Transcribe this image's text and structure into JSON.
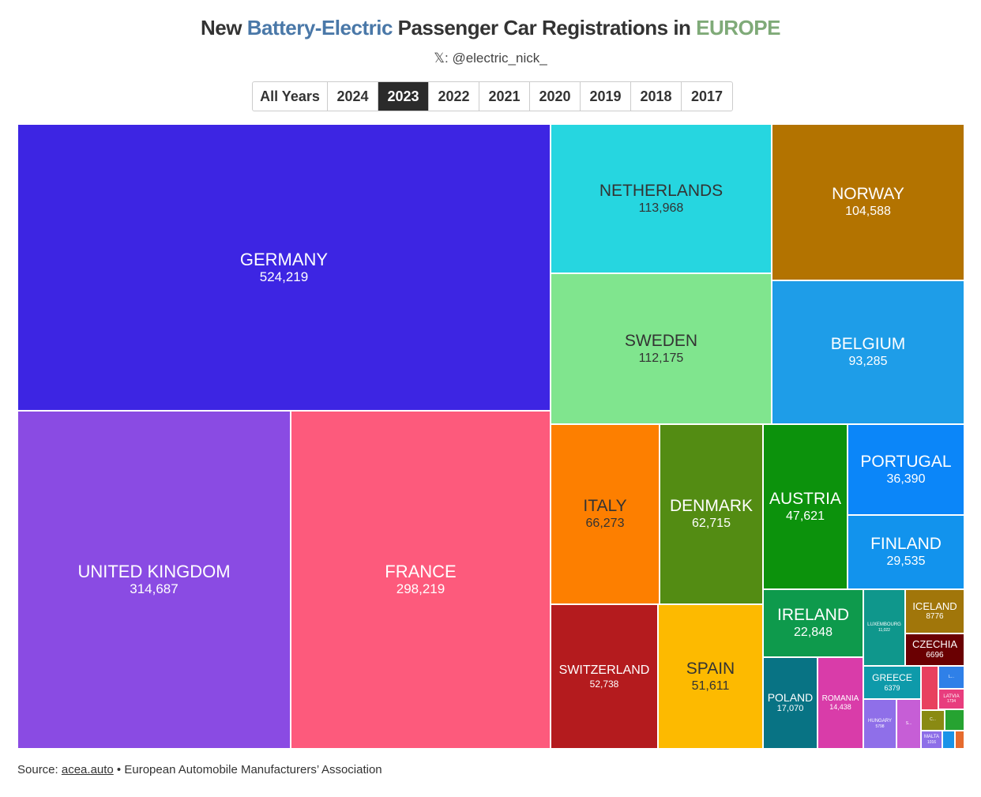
{
  "title": {
    "part1": "New ",
    "highlight1": "Battery-Electric",
    "part2": " Passenger Car Registrations in ",
    "highlight2": "EUROPE"
  },
  "subtitle": "𝕏: @electric_nick_",
  "tabs": [
    {
      "label": "All Years",
      "active": false
    },
    {
      "label": "2024",
      "active": false
    },
    {
      "label": "2023",
      "active": true
    },
    {
      "label": "2022",
      "active": false
    },
    {
      "label": "2021",
      "active": false
    },
    {
      "label": "2020",
      "active": false
    },
    {
      "label": "2019",
      "active": false
    },
    {
      "label": "2018",
      "active": false
    },
    {
      "label": "2017",
      "active": false
    }
  ],
  "source": {
    "prefix": "Source: ",
    "link": "acea.auto",
    "suffix": " • European Automobile Manufacturers’ Association"
  },
  "chart_data": {
    "type": "treemap",
    "year": "2023",
    "items": [
      {
        "name": "GERMANY",
        "label": "524,219",
        "value": 524219,
        "color": "#3d25e3"
      },
      {
        "name": "UNITED KINGDOM",
        "label": "314,687",
        "value": 314687,
        "color": "#8a4be3"
      },
      {
        "name": "FRANCE",
        "label": "298,219",
        "value": 298219,
        "color": "#fd5a7c"
      },
      {
        "name": "NETHERLANDS",
        "label": "113,968",
        "value": 113968,
        "color": "#26d6e0"
      },
      {
        "name": "SWEDEN",
        "label": "112,175",
        "value": 112175,
        "color": "#80e58e"
      },
      {
        "name": "NORWAY",
        "label": "104,588",
        "value": 104588,
        "color": "#b37300"
      },
      {
        "name": "BELGIUM",
        "label": "93,285",
        "value": 93285,
        "color": "#1e9de8"
      },
      {
        "name": "ITALY",
        "label": "66,273",
        "value": 66273,
        "color": "#fd7f00"
      },
      {
        "name": "DENMARK",
        "label": "62,715",
        "value": 62715,
        "color": "#538c13"
      },
      {
        "name": "SWITZERLAND",
        "label": "52,738",
        "value": 52738,
        "color": "#b41b1e"
      },
      {
        "name": "SPAIN",
        "label": "51,611",
        "value": 51611,
        "color": "#fdba00"
      },
      {
        "name": "AUSTRIA",
        "label": "47,621",
        "value": 47621,
        "color": "#0c920c"
      },
      {
        "name": "PORTUGAL",
        "label": "36,390",
        "value": 36390,
        "color": "#0b86f9"
      },
      {
        "name": "FINLAND",
        "label": "29,535",
        "value": 29535,
        "color": "#1293ed"
      },
      {
        "name": "IRELAND",
        "label": "22,848",
        "value": 22848,
        "color": "#0e9a4c"
      },
      {
        "name": "POLAND",
        "label": "17,070",
        "value": 17070,
        "color": "#087384"
      },
      {
        "name": "ROMANIA",
        "label": "14,438",
        "value": 14438,
        "color": "#d93ca9"
      },
      {
        "name": "LUXEMBOURG",
        "label": "11,022",
        "value": 11022,
        "color": "#0f978c"
      },
      {
        "name": "ICELAND",
        "label": "8776",
        "value": 8776,
        "color": "#a1760a"
      },
      {
        "name": "CZECHIA",
        "label": "6696",
        "value": 6696,
        "color": "#6a0002"
      },
      {
        "name": "GREECE",
        "label": "6379",
        "value": 6379,
        "color": "#0e9aaa"
      },
      {
        "name": "HUNGARY",
        "label": "5798",
        "value": 5798,
        "color": "#8f6fe9"
      },
      {
        "name": "S...",
        "label": "",
        "value": 4600,
        "color": "#c65ed6"
      },
      {
        "name": "",
        "label": "",
        "value": 3000,
        "color": "#e8405f"
      },
      {
        "name": "L...",
        "label": "",
        "value": 2500,
        "color": "#2f80e8"
      },
      {
        "name": "LATVIA",
        "label": "1734",
        "value": 1734,
        "color": "#e83d7e"
      },
      {
        "name": "C...",
        "label": "",
        "value": 1500,
        "color": "#8a8a13"
      },
      {
        "name": "",
        "label": "",
        "value": 1400,
        "color": "#26a331"
      },
      {
        "name": "MALTA",
        "label": "1016",
        "value": 1016,
        "color": "#8d6ee8"
      },
      {
        "name": "",
        "label": "",
        "value": 500,
        "color": "#1a93e8"
      },
      {
        "name": "",
        "label": "",
        "value": 400,
        "color": "#e66b2e"
      }
    ]
  }
}
